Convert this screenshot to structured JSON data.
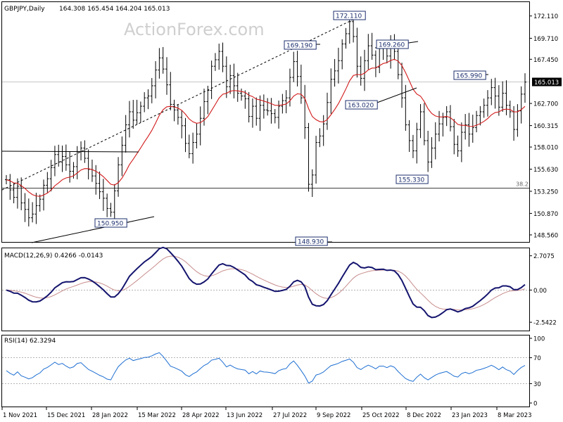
{
  "header": {
    "symbol": "GBPJPY,Daily",
    "ohlc": "164.308 165.454 164.204 165.013"
  },
  "watermark": "ActionForex.com",
  "chart_data": [
    {
      "type": "candlestick",
      "name": "GBPJPY,Daily",
      "ylim": [
        147.8,
        173.6
      ],
      "y_ticks": [
        "172.110",
        "169.710",
        "167.450",
        "165.013",
        "162.700",
        "160.315",
        "158.010",
        "155.630",
        "153.250",
        "150.870",
        "148.560"
      ],
      "current_price": "165.013",
      "x_labels": [
        "1 Nov 2021",
        "15 Dec 2021",
        "28 Jan 2022",
        "15 Mar 2022",
        "28 Apr 2022",
        "13 Jun 2022",
        "27 Jul 2022",
        "9 Sep 2022",
        "25 Oct 2022",
        "8 Dec 2022",
        "23 Jan 2023",
        "8 Mar 2023"
      ],
      "annotations": [
        "150.950",
        "169.190",
        "172.110",
        "169.260",
        "163.020",
        "148.930",
        "155.330",
        "165.990"
      ],
      "fib_label": "38.2",
      "fib_level": 153.6,
      "closes": [
        154.5,
        153.4,
        152.6,
        153.8,
        152.0,
        151.3,
        150.4,
        150.8,
        151.7,
        152.4,
        153.9,
        154.6,
        155.8,
        157.2,
        156.4,
        157.0,
        156.1,
        155.4,
        155.9,
        157.5,
        157.9,
        156.8,
        155.6,
        154.9,
        154.1,
        153.2,
        152.5,
        151.4,
        151.0,
        153.3,
        156.1,
        158.2,
        160.4,
        161.8,
        160.9,
        161.7,
        162.4,
        163.3,
        163.5,
        164.6,
        166.3,
        167.6,
        166.4,
        164.7,
        162.6,
        162.0,
        161.2,
        160.3,
        158.4,
        157.3,
        158.5,
        159.4,
        161.1,
        162.9,
        164.1,
        166.7,
        167.4,
        168.3,
        166.7,
        164.5,
        165.7,
        164.6,
        163.8,
        163.5,
        163.2,
        161.3,
        162.4,
        161.1,
        162.5,
        162.0,
        161.9,
        161.6,
        161.2,
        162.4,
        163.0,
        163.3,
        165.5,
        167.2,
        165.6,
        163.3,
        160.1,
        154.0,
        155.0,
        158.5,
        159.2,
        160.5,
        162.8,
        165.3,
        166.2,
        167.3,
        169.1,
        170.2,
        171.5,
        169.9,
        166.7,
        165.4,
        167.3,
        168.9,
        167.9,
        166.6,
        168.6,
        168.7,
        167.8,
        169.1,
        168.3,
        165.8,
        163.3,
        160.4,
        158.7,
        157.6,
        159.9,
        161.8,
        158.7,
        156.4,
        157.9,
        159.4,
        160.5,
        161.2,
        161.8,
        160.2,
        158.3,
        157.6,
        159.6,
        160.4,
        159.4,
        160.1,
        161.4,
        161.8,
        162.5,
        163.3,
        164.4,
        163.5,
        162.3,
        163.8,
        162.5,
        161.8,
        159.9,
        161.9,
        163.7,
        165.0
      ],
      "indicators": {
        "macd": {
          "label": "MACD(12,26,9) 0.4266 -0.0143",
          "ylim": [
            -3.2,
            3.3
          ],
          "ticks": [
            "2.7075",
            "0.00",
            "-2.5422"
          ]
        },
        "rsi": {
          "label": "RSI(14) 62.3294",
          "ylim": [
            0,
            100
          ],
          "ticks": [
            "100",
            "70",
            "30",
            "0"
          ],
          "levels": [
            70,
            30
          ]
        }
      }
    }
  ]
}
